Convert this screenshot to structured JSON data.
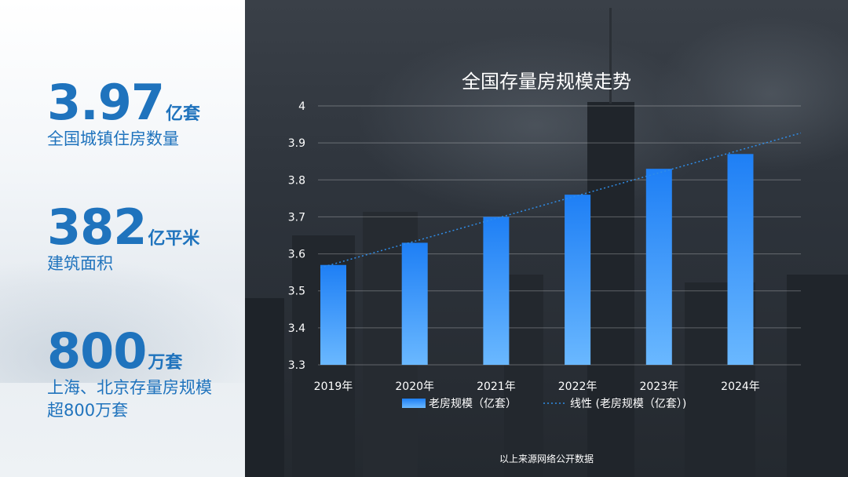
{
  "stats": [
    {
      "value": "3.97",
      "unit": "亿套",
      "desc_lines": [
        "全国城镇住房数量"
      ]
    },
    {
      "value": "382",
      "unit": "亿平米",
      "desc_lines": [
        "建筑面积"
      ]
    },
    {
      "value": "800",
      "unit": "万套",
      "desc_lines": [
        "上海、北京存量房规模",
        "超800万套"
      ]
    }
  ],
  "source_note": "以上来源网络公开数据",
  "colors": {
    "accent": "#1f73bd",
    "bar_top": "#1e7ff5",
    "bar_bottom": "#6ab8ff",
    "trendline": "#2f8de8"
  },
  "chart_data": {
    "type": "bar",
    "title": "全国存量房规模走势",
    "categories": [
      "2019年",
      "2020年",
      "2021年",
      "2022年",
      "2023年",
      "2024年"
    ],
    "series": [
      {
        "name": "老房规模（亿套）",
        "values": [
          3.57,
          3.63,
          3.7,
          3.76,
          3.83,
          3.87
        ]
      }
    ],
    "trendline": {
      "name": "线性 (老房规模（亿套）)",
      "type": "linear"
    },
    "ylim": [
      3.3,
      4
    ],
    "yticks": [
      "3.3",
      "3.4",
      "3.5",
      "3.6",
      "3.7",
      "3.8",
      "3.9",
      "4"
    ],
    "grid": true,
    "legend": "bottom"
  }
}
